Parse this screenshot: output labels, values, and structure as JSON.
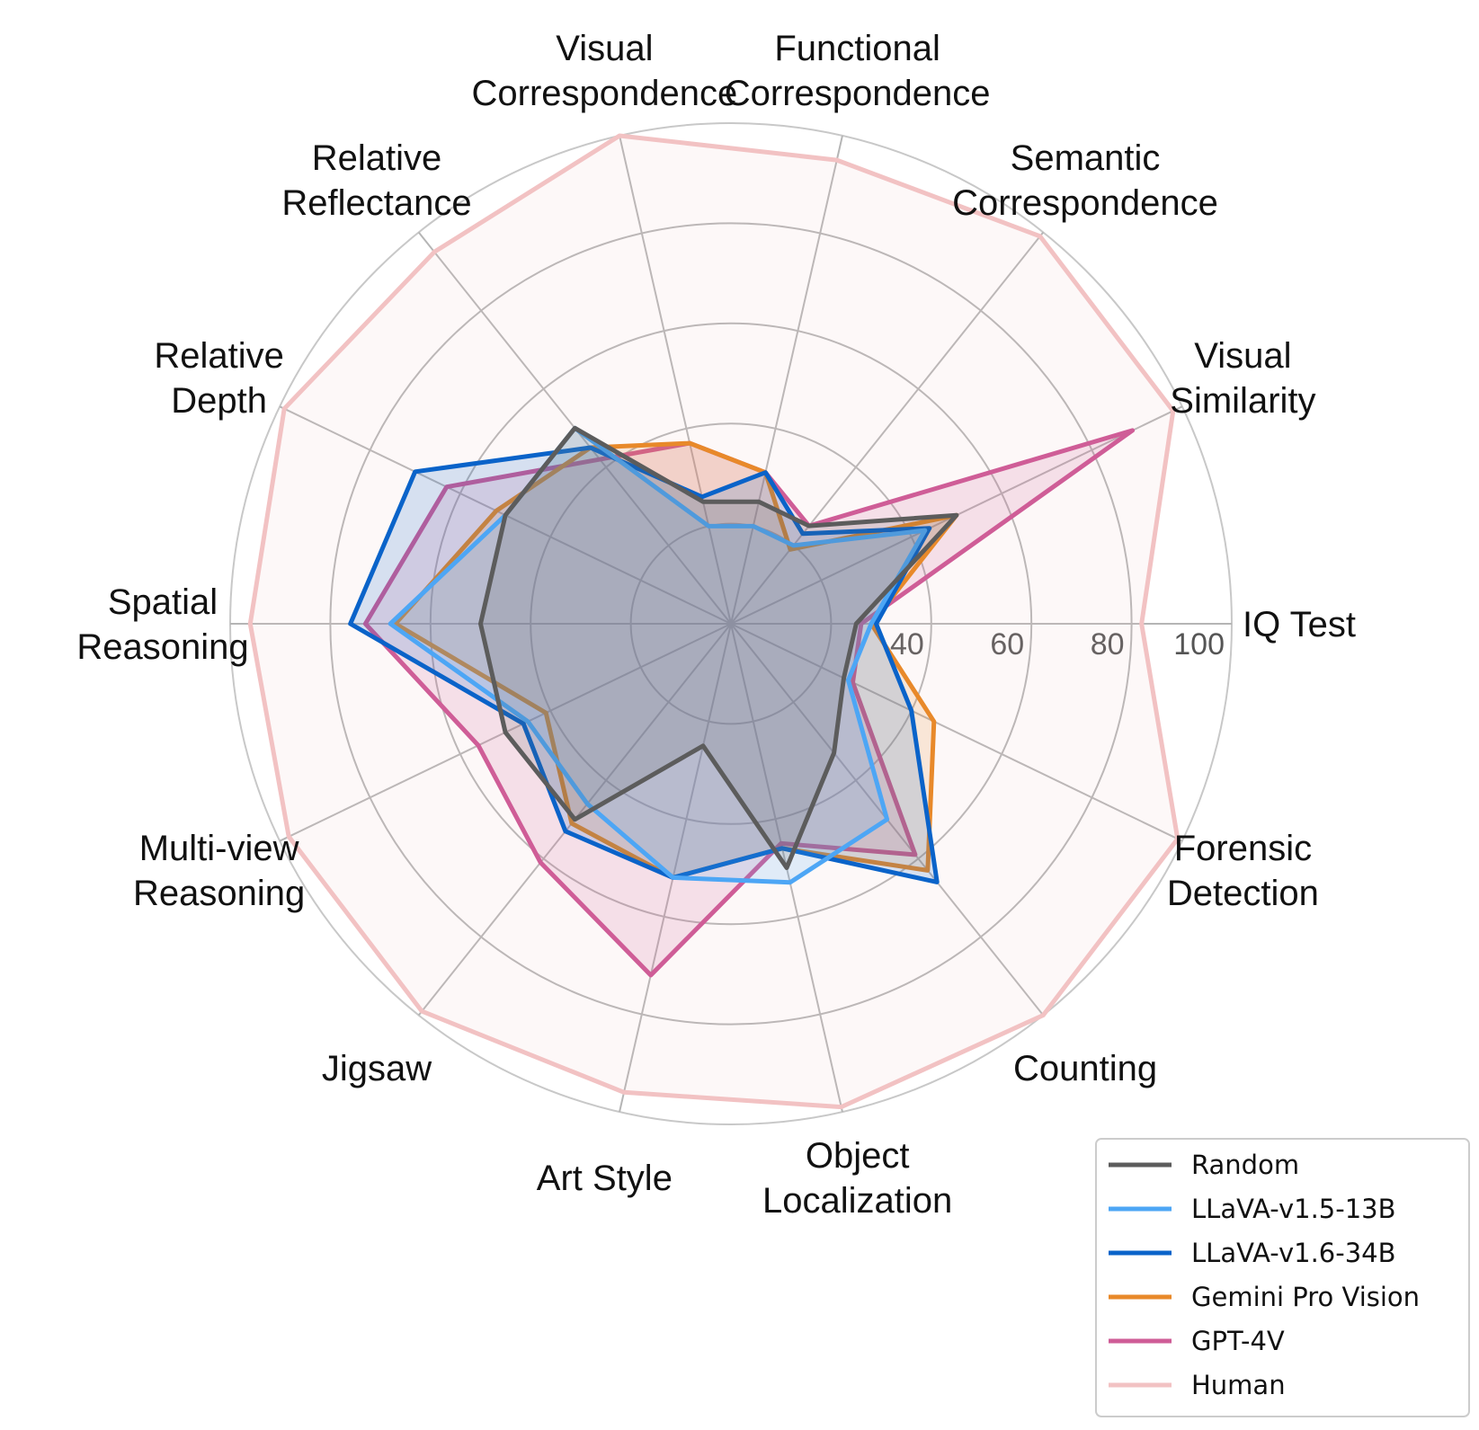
{
  "chart_data": {
    "type": "radar",
    "categories": [
      "IQ Test",
      "Visual Similarity",
      "Semantic Correspondence",
      "Functional Correspondence",
      "Visual Correspondence",
      "Relative Reflectance",
      "Relative Depth",
      "Spatial Reasoning",
      "Multi-view Reasoning",
      "Jigsaw",
      "Art Style",
      "Object Localization",
      "Counting",
      "Forensic Detection"
    ],
    "category_lines": [
      [
        "IQ Test"
      ],
      [
        "Visual",
        "Similarity"
      ],
      [
        "Semantic",
        "Correspondence"
      ],
      [
        "Functional",
        "Correspondence"
      ],
      [
        "Visual",
        "Correspondence"
      ],
      [
        "Relative",
        "Reflectance"
      ],
      [
        "Relative",
        "Depth"
      ],
      [
        "Spatial",
        "Reasoning"
      ],
      [
        "Multi-view",
        "Reasoning"
      ],
      [
        "Jigsaw"
      ],
      [
        "Art Style"
      ],
      [
        "Object",
        "Localization"
      ],
      [
        "Counting"
      ],
      [
        "Forensic",
        "Detection"
      ]
    ],
    "radial_ticks": [
      "40",
      "60",
      "80",
      "100"
    ],
    "range": [
      0,
      100
    ],
    "series": [
      {
        "name": "Random",
        "color": "#5c5c5c",
        "values": [
          25,
          50,
          25,
          25,
          25,
          50,
          50,
          50,
          50,
          50,
          25,
          50,
          33,
          25
        ]
      },
      {
        "name": "LLaVA-v1.5-13B",
        "color": "#4da6f5",
        "values": [
          28,
          43,
          20,
          20,
          20,
          50,
          50,
          68,
          45,
          46,
          52,
          53,
          50,
          26
        ]
      },
      {
        "name": "LLaVA-v1.6-34B",
        "color": "#0a63c9",
        "values": [
          29,
          44,
          23,
          31,
          26,
          45,
          70,
          76,
          46,
          53,
          52,
          46,
          66,
          40
        ]
      },
      {
        "name": "Gemini Pro Vision",
        "color": "#e8892a",
        "values": [
          28,
          50,
          19,
          31,
          37,
          45,
          52,
          67,
          41,
          51,
          52,
          46,
          63,
          45
        ]
      },
      {
        "name": "GPT-4V",
        "color": "#cf5d97",
        "values": [
          26,
          89,
          25,
          31,
          37,
          42,
          63,
          73,
          56,
          61,
          72,
          45,
          59,
          27
        ]
      },
      {
        "name": "Human",
        "color": "#f2c2c3",
        "values": [
          82,
          98,
          99,
          95,
          100,
          95,
          99,
          96,
          98,
          99,
          96,
          99,
          100,
          99
        ]
      }
    ],
    "grid": true,
    "legend_position": "bottom-right"
  }
}
